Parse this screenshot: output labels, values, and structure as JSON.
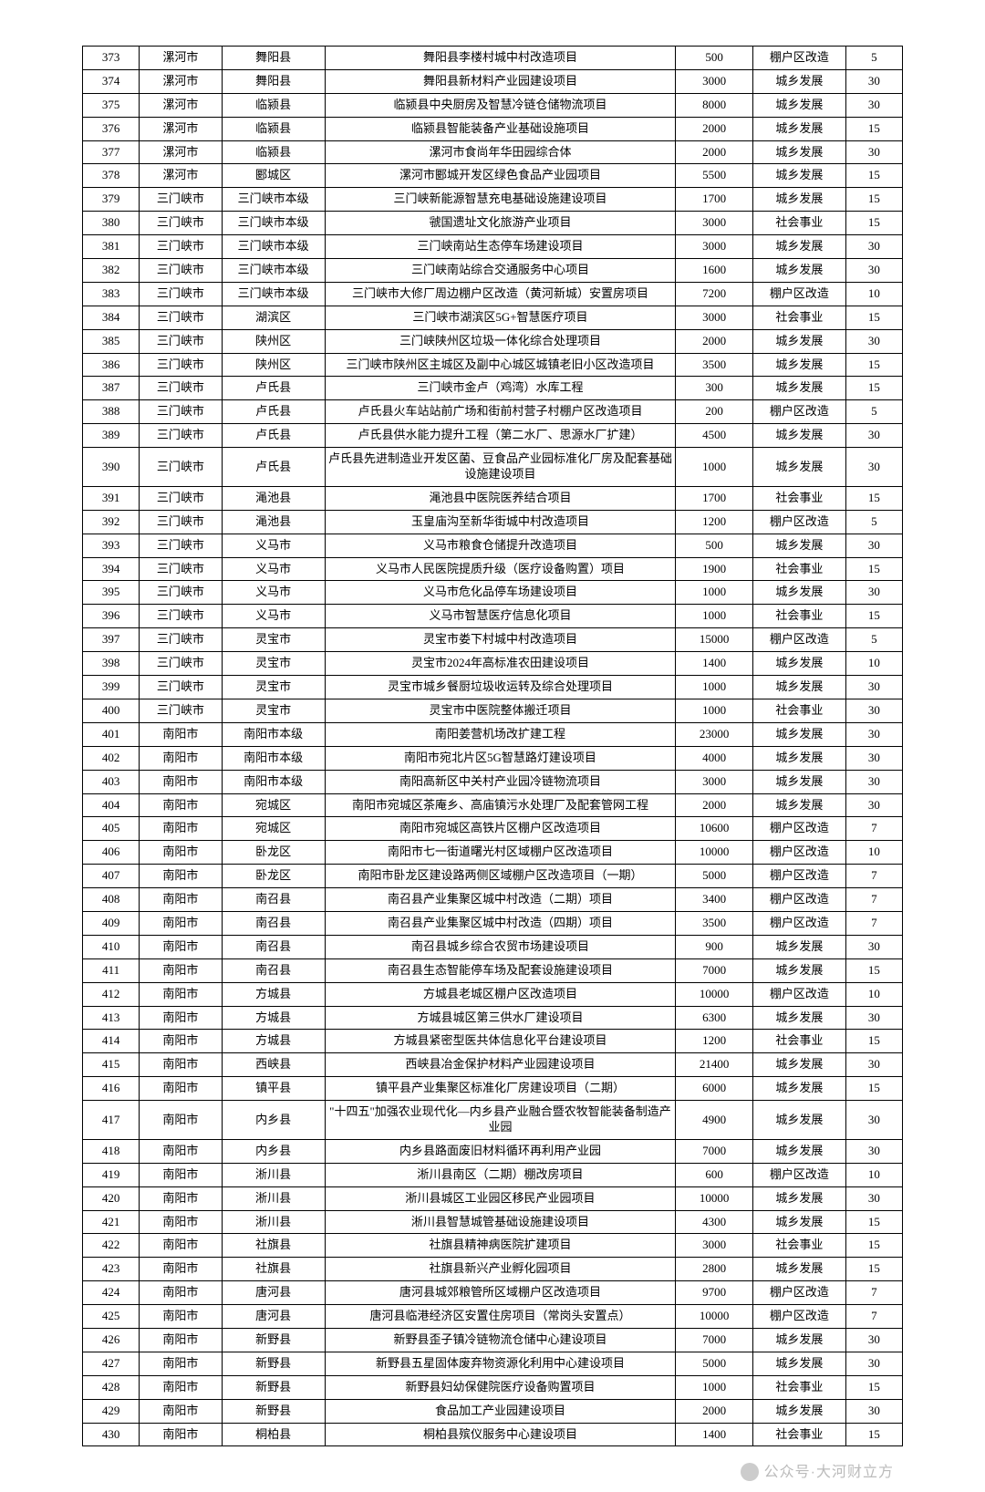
{
  "table": {
    "type": "table",
    "columns": [
      {
        "key": "idx",
        "class": "col-idx"
      },
      {
        "key": "city",
        "class": "col-city"
      },
      {
        "key": "county",
        "class": "col-county"
      },
      {
        "key": "project",
        "class": "col-project"
      },
      {
        "key": "amount",
        "class": "col-amount"
      },
      {
        "key": "category",
        "class": "col-category"
      },
      {
        "key": "last",
        "class": "col-last"
      }
    ],
    "rows": [
      {
        "idx": "373",
        "city": "漯河市",
        "county": "舞阳县",
        "project": "舞阳县李楼村城中村改造项目",
        "amount": "500",
        "category": "棚户区改造",
        "last": "5"
      },
      {
        "idx": "374",
        "city": "漯河市",
        "county": "舞阳县",
        "project": "舞阳县新材料产业园建设项目",
        "amount": "3000",
        "category": "城乡发展",
        "last": "30"
      },
      {
        "idx": "375",
        "city": "漯河市",
        "county": "临颍县",
        "project": "临颍县中央厨房及智慧冷链仓储物流项目",
        "amount": "8000",
        "category": "城乡发展",
        "last": "30"
      },
      {
        "idx": "376",
        "city": "漯河市",
        "county": "临颍县",
        "project": "临颍县智能装备产业基础设施项目",
        "amount": "2000",
        "category": "城乡发展",
        "last": "15"
      },
      {
        "idx": "377",
        "city": "漯河市",
        "county": "临颍县",
        "project": "漯河市食尚年华田园综合体",
        "amount": "2000",
        "category": "城乡发展",
        "last": "30"
      },
      {
        "idx": "378",
        "city": "漯河市",
        "county": "郾城区",
        "project": "漯河市郾城开发区绿色食品产业园项目",
        "amount": "5500",
        "category": "城乡发展",
        "last": "15"
      },
      {
        "idx": "379",
        "city": "三门峡市",
        "county": "三门峡市本级",
        "project": "三门峡新能源智慧充电基础设施建设项目",
        "amount": "1700",
        "category": "城乡发展",
        "last": "15"
      },
      {
        "idx": "380",
        "city": "三门峡市",
        "county": "三门峡市本级",
        "project": "虢国遗址文化旅游产业项目",
        "amount": "3000",
        "category": "社会事业",
        "last": "15"
      },
      {
        "idx": "381",
        "city": "三门峡市",
        "county": "三门峡市本级",
        "project": "三门峡南站生态停车场建设项目",
        "amount": "3000",
        "category": "城乡发展",
        "last": "30"
      },
      {
        "idx": "382",
        "city": "三门峡市",
        "county": "三门峡市本级",
        "project": "三门峡南站综合交通服务中心项目",
        "amount": "1600",
        "category": "城乡发展",
        "last": "30"
      },
      {
        "idx": "383",
        "city": "三门峡市",
        "county": "三门峡市本级",
        "project": "三门峡市大修厂周边棚户区改造（黄河新城）安置房项目",
        "amount": "7200",
        "category": "棚户区改造",
        "last": "10"
      },
      {
        "idx": "384",
        "city": "三门峡市",
        "county": "湖滨区",
        "project": "三门峡市湖滨区5G+智慧医疗项目",
        "amount": "3000",
        "category": "社会事业",
        "last": "15"
      },
      {
        "idx": "385",
        "city": "三门峡市",
        "county": "陕州区",
        "project": "三门峡陕州区垃圾一体化综合处理项目",
        "amount": "2000",
        "category": "城乡发展",
        "last": "30"
      },
      {
        "idx": "386",
        "city": "三门峡市",
        "county": "陕州区",
        "project": "三门峡市陕州区主城区及副中心城区城镇老旧小区改造项目",
        "amount": "3500",
        "category": "城乡发展",
        "last": "15"
      },
      {
        "idx": "387",
        "city": "三门峡市",
        "county": "卢氏县",
        "project": "三门峡市金卢（鸡湾）水库工程",
        "amount": "300",
        "category": "城乡发展",
        "last": "15"
      },
      {
        "idx": "388",
        "city": "三门峡市",
        "county": "卢氏县",
        "project": "卢氏县火车站站前广场和街前村营子村棚户区改造项目",
        "amount": "200",
        "category": "棚户区改造",
        "last": "5"
      },
      {
        "idx": "389",
        "city": "三门峡市",
        "county": "卢氏县",
        "project": "卢氏县供水能力提升工程（第二水厂、思源水厂扩建）",
        "amount": "4500",
        "category": "城乡发展",
        "last": "30"
      },
      {
        "idx": "390",
        "city": "三门峡市",
        "county": "卢氏县",
        "project": "卢氏县先进制造业开发区菌、豆食品产业园标准化厂房及配套基础设施建设项目",
        "amount": "1000",
        "category": "城乡发展",
        "last": "30"
      },
      {
        "idx": "391",
        "city": "三门峡市",
        "county": "渑池县",
        "project": "渑池县中医院医养结合项目",
        "amount": "1700",
        "category": "社会事业",
        "last": "15"
      },
      {
        "idx": "392",
        "city": "三门峡市",
        "county": "渑池县",
        "project": "玉皇庙沟至新华街城中村改造项目",
        "amount": "1200",
        "category": "棚户区改造",
        "last": "5"
      },
      {
        "idx": "393",
        "city": "三门峡市",
        "county": "义马市",
        "project": "义马市粮食仓储提升改造项目",
        "amount": "500",
        "category": "城乡发展",
        "last": "30"
      },
      {
        "idx": "394",
        "city": "三门峡市",
        "county": "义马市",
        "project": "义马市人民医院提质升级（医疗设备购置）项目",
        "amount": "1900",
        "category": "社会事业",
        "last": "15"
      },
      {
        "idx": "395",
        "city": "三门峡市",
        "county": "义马市",
        "project": "义马市危化品停车场建设项目",
        "amount": "1000",
        "category": "城乡发展",
        "last": "30"
      },
      {
        "idx": "396",
        "city": "三门峡市",
        "county": "义马市",
        "project": "义马市智慧医疗信息化项目",
        "amount": "1000",
        "category": "社会事业",
        "last": "15"
      },
      {
        "idx": "397",
        "city": "三门峡市",
        "county": "灵宝市",
        "project": "灵宝市娄下村城中村改造项目",
        "amount": "15000",
        "category": "棚户区改造",
        "last": "5"
      },
      {
        "idx": "398",
        "city": "三门峡市",
        "county": "灵宝市",
        "project": "灵宝市2024年高标准农田建设项目",
        "amount": "1400",
        "category": "城乡发展",
        "last": "10"
      },
      {
        "idx": "399",
        "city": "三门峡市",
        "county": "灵宝市",
        "project": "灵宝市城乡餐厨垃圾收运转及综合处理项目",
        "amount": "1000",
        "category": "城乡发展",
        "last": "30"
      },
      {
        "idx": "400",
        "city": "三门峡市",
        "county": "灵宝市",
        "project": "灵宝市中医院整体搬迁项目",
        "amount": "1000",
        "category": "社会事业",
        "last": "30"
      },
      {
        "idx": "401",
        "city": "南阳市",
        "county": "南阳市本级",
        "project": "南阳姜营机场改扩建工程",
        "amount": "23000",
        "category": "城乡发展",
        "last": "30"
      },
      {
        "idx": "402",
        "city": "南阳市",
        "county": "南阳市本级",
        "project": "南阳市宛北片区5G智慧路灯建设项目",
        "amount": "4000",
        "category": "城乡发展",
        "last": "30"
      },
      {
        "idx": "403",
        "city": "南阳市",
        "county": "南阳市本级",
        "project": "南阳高新区中关村产业园冷链物流项目",
        "amount": "3000",
        "category": "城乡发展",
        "last": "30"
      },
      {
        "idx": "404",
        "city": "南阳市",
        "county": "宛城区",
        "project": "南阳市宛城区茶庵乡、高庙镇污水处理厂及配套管网工程",
        "amount": "2000",
        "category": "城乡发展",
        "last": "30"
      },
      {
        "idx": "405",
        "city": "南阳市",
        "county": "宛城区",
        "project": "南阳市宛城区高铁片区棚户区改造项目",
        "amount": "10600",
        "category": "棚户区改造",
        "last": "7"
      },
      {
        "idx": "406",
        "city": "南阳市",
        "county": "卧龙区",
        "project": "南阳市七一街道曙光村区域棚户区改造项目",
        "amount": "10000",
        "category": "棚户区改造",
        "last": "10"
      },
      {
        "idx": "407",
        "city": "南阳市",
        "county": "卧龙区",
        "project": "南阳市卧龙区建设路两侧区域棚户区改造项目（一期）",
        "amount": "5000",
        "category": "棚户区改造",
        "last": "7"
      },
      {
        "idx": "408",
        "city": "南阳市",
        "county": "南召县",
        "project": "南召县产业集聚区城中村改造（二期）项目",
        "amount": "3400",
        "category": "棚户区改造",
        "last": "7"
      },
      {
        "idx": "409",
        "city": "南阳市",
        "county": "南召县",
        "project": "南召县产业集聚区城中村改造（四期）项目",
        "amount": "3500",
        "category": "棚户区改造",
        "last": "7"
      },
      {
        "idx": "410",
        "city": "南阳市",
        "county": "南召县",
        "project": "南召县城乡综合农贸市场建设项目",
        "amount": "900",
        "category": "城乡发展",
        "last": "30"
      },
      {
        "idx": "411",
        "city": "南阳市",
        "county": "南召县",
        "project": "南召县生态智能停车场及配套设施建设项目",
        "amount": "7000",
        "category": "城乡发展",
        "last": "15"
      },
      {
        "idx": "412",
        "city": "南阳市",
        "county": "方城县",
        "project": "方城县老城区棚户区改造项目",
        "amount": "10000",
        "category": "棚户区改造",
        "last": "10"
      },
      {
        "idx": "413",
        "city": "南阳市",
        "county": "方城县",
        "project": "方城县城区第三供水厂建设项目",
        "amount": "6300",
        "category": "城乡发展",
        "last": "30"
      },
      {
        "idx": "414",
        "city": "南阳市",
        "county": "方城县",
        "project": "方城县紧密型医共体信息化平台建设项目",
        "amount": "1200",
        "category": "社会事业",
        "last": "15"
      },
      {
        "idx": "415",
        "city": "南阳市",
        "county": "西峡县",
        "project": "西峡县冶金保护材料产业园建设项目",
        "amount": "21400",
        "category": "城乡发展",
        "last": "30"
      },
      {
        "idx": "416",
        "city": "南阳市",
        "county": "镇平县",
        "project": "镇平县产业集聚区标准化厂房建设项目（二期）",
        "amount": "6000",
        "category": "城乡发展",
        "last": "15"
      },
      {
        "idx": "417",
        "city": "南阳市",
        "county": "内乡县",
        "project": "\"十四五\"加强农业现代化—内乡县产业融合暨农牧智能装备制造产业园",
        "amount": "4900",
        "category": "城乡发展",
        "last": "30"
      },
      {
        "idx": "418",
        "city": "南阳市",
        "county": "内乡县",
        "project": "内乡县路面废旧材料循环再利用产业园",
        "amount": "7000",
        "category": "城乡发展",
        "last": "30"
      },
      {
        "idx": "419",
        "city": "南阳市",
        "county": "淅川县",
        "project": "淅川县南区（二期）棚改房项目",
        "amount": "600",
        "category": "棚户区改造",
        "last": "10"
      },
      {
        "idx": "420",
        "city": "南阳市",
        "county": "淅川县",
        "project": "淅川县城区工业园区移民产业园项目",
        "amount": "10000",
        "category": "城乡发展",
        "last": "30"
      },
      {
        "idx": "421",
        "city": "南阳市",
        "county": "淅川县",
        "project": "淅川县智慧城管基础设施建设项目",
        "amount": "4300",
        "category": "城乡发展",
        "last": "15"
      },
      {
        "idx": "422",
        "city": "南阳市",
        "county": "社旗县",
        "project": "社旗县精神病医院扩建项目",
        "amount": "3000",
        "category": "社会事业",
        "last": "15"
      },
      {
        "idx": "423",
        "city": "南阳市",
        "county": "社旗县",
        "project": "社旗县新兴产业孵化园项目",
        "amount": "2800",
        "category": "城乡发展",
        "last": "15"
      },
      {
        "idx": "424",
        "city": "南阳市",
        "county": "唐河县",
        "project": "唐河县城郊粮管所区域棚户区改造项目",
        "amount": "9700",
        "category": "棚户区改造",
        "last": "7"
      },
      {
        "idx": "425",
        "city": "南阳市",
        "county": "唐河县",
        "project": "唐河县临港经济区安置住房项目（常岗头安置点）",
        "amount": "10000",
        "category": "棚户区改造",
        "last": "7"
      },
      {
        "idx": "426",
        "city": "南阳市",
        "county": "新野县",
        "project": "新野县歪子镇冷链物流仓储中心建设项目",
        "amount": "7000",
        "category": "城乡发展",
        "last": "30"
      },
      {
        "idx": "427",
        "city": "南阳市",
        "county": "新野县",
        "project": "新野县五星固体废弃物资源化利用中心建设项目",
        "amount": "5000",
        "category": "城乡发展",
        "last": "30"
      },
      {
        "idx": "428",
        "city": "南阳市",
        "county": "新野县",
        "project": "新野县妇幼保健院医疗设备购置项目",
        "amount": "1000",
        "category": "社会事业",
        "last": "15"
      },
      {
        "idx": "429",
        "city": "南阳市",
        "county": "新野县",
        "project": "食品加工产业园建设项目",
        "amount": "2000",
        "category": "城乡发展",
        "last": "30"
      },
      {
        "idx": "430",
        "city": "南阳市",
        "county": "桐柏县",
        "project": "桐柏县殡仪服务中心建设项目",
        "amount": "1400",
        "category": "社会事业",
        "last": "15"
      }
    ]
  },
  "watermark": {
    "text": "公众号·大河财立方"
  }
}
